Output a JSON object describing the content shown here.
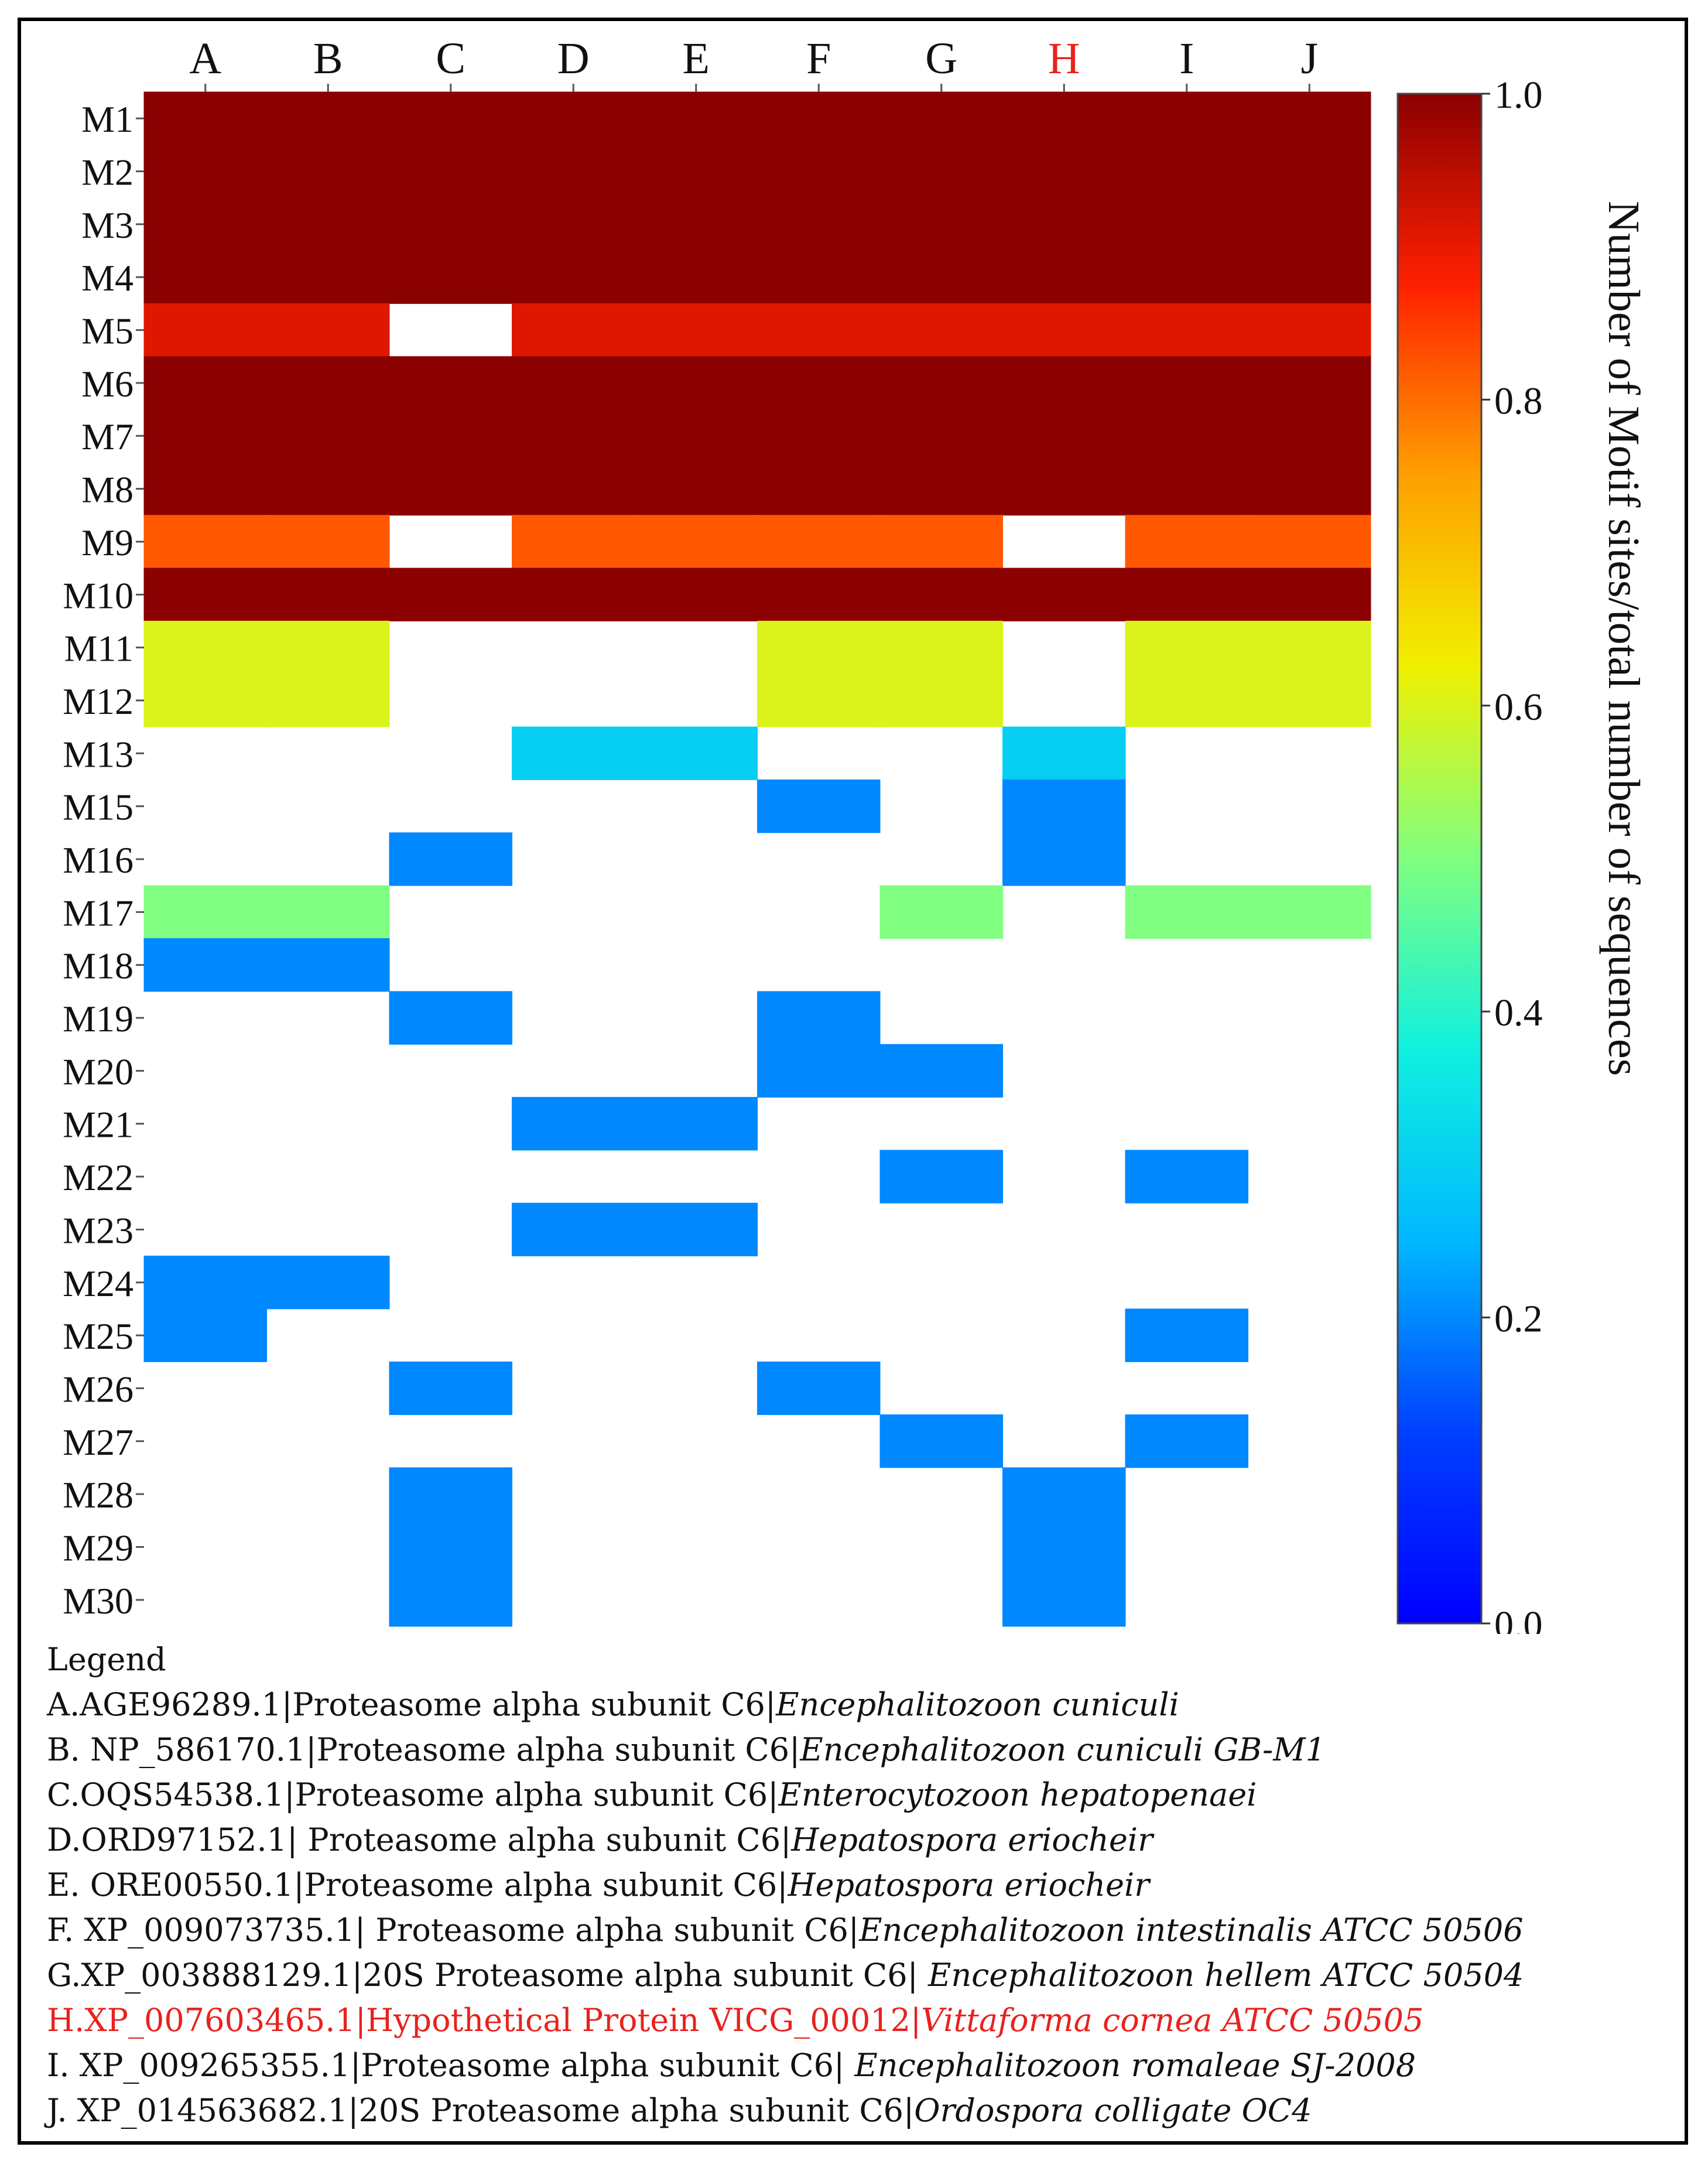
{
  "chart_data": {
    "type": "heatmap",
    "columns": [
      "A",
      "B",
      "C",
      "D",
      "E",
      "F",
      "G",
      "H",
      "I",
      "J"
    ],
    "highlighted_column": "H",
    "rows": [
      "M1",
      "M2",
      "M3",
      "M4",
      "M5",
      "M6",
      "M7",
      "M8",
      "M9",
      "M10",
      "M11",
      "M12",
      "M13",
      "M15",
      "M16",
      "M17",
      "M18",
      "M19",
      "M20",
      "M21",
      "M22",
      "M23",
      "M24",
      "M25",
      "M26",
      "M27",
      "M28",
      "M29",
      "M30"
    ],
    "values": [
      [
        1,
        1,
        1,
        1,
        1,
        1,
        1,
        1,
        1,
        1
      ],
      [
        1,
        1,
        1,
        1,
        1,
        1,
        1,
        1,
        1,
        1
      ],
      [
        1,
        1,
        1,
        1,
        1,
        1,
        1,
        1,
        1,
        1
      ],
      [
        1,
        1,
        1,
        1,
        1,
        1,
        1,
        1,
        1,
        1
      ],
      [
        0.91,
        0.91,
        null,
        0.91,
        0.91,
        0.91,
        0.91,
        0.91,
        0.91,
        0.91
      ],
      [
        1,
        1,
        1,
        1,
        1,
        1,
        1,
        1,
        1,
        1
      ],
      [
        1,
        1,
        1,
        1,
        1,
        1,
        1,
        1,
        1,
        1
      ],
      [
        1,
        1,
        1,
        1,
        1,
        1,
        1,
        1,
        1,
        1
      ],
      [
        0.82,
        0.82,
        null,
        0.82,
        0.82,
        0.82,
        0.82,
        null,
        0.82,
        0.82
      ],
      [
        1,
        1,
        1,
        1,
        1,
        1,
        1,
        1,
        1,
        1
      ],
      [
        0.6,
        0.6,
        null,
        null,
        null,
        0.6,
        0.6,
        null,
        0.6,
        0.6
      ],
      [
        0.6,
        0.6,
        null,
        null,
        null,
        0.6,
        0.6,
        null,
        0.6,
        0.6
      ],
      [
        null,
        null,
        null,
        0.3,
        0.3,
        null,
        null,
        0.3,
        null,
        null
      ],
      [
        null,
        null,
        null,
        null,
        null,
        0.2,
        null,
        0.2,
        null,
        null
      ],
      [
        null,
        null,
        0.2,
        null,
        null,
        null,
        null,
        0.2,
        null,
        null
      ],
      [
        0.5,
        0.5,
        null,
        null,
        null,
        null,
        0.5,
        null,
        0.5,
        0.5
      ],
      [
        0.2,
        0.2,
        null,
        null,
        null,
        null,
        null,
        null,
        null,
        null
      ],
      [
        null,
        null,
        0.2,
        null,
        null,
        0.2,
        null,
        null,
        null,
        null
      ],
      [
        null,
        null,
        null,
        null,
        null,
        0.2,
        0.2,
        null,
        null,
        null
      ],
      [
        null,
        null,
        null,
        0.2,
        0.2,
        null,
        null,
        null,
        null,
        null
      ],
      [
        null,
        null,
        null,
        null,
        null,
        null,
        0.2,
        null,
        0.2,
        null
      ],
      [
        null,
        null,
        null,
        0.2,
        0.2,
        null,
        null,
        null,
        null,
        null
      ],
      [
        0.2,
        0.2,
        null,
        null,
        null,
        null,
        null,
        null,
        null,
        null
      ],
      [
        0.2,
        null,
        null,
        null,
        null,
        null,
        null,
        null,
        0.2,
        null
      ],
      [
        null,
        null,
        0.2,
        null,
        null,
        0.2,
        null,
        null,
        null,
        null
      ],
      [
        null,
        null,
        null,
        null,
        null,
        null,
        0.2,
        null,
        0.2,
        null
      ],
      [
        null,
        null,
        0.2,
        null,
        null,
        null,
        null,
        0.2,
        null,
        null
      ],
      [
        null,
        null,
        0.2,
        null,
        null,
        null,
        null,
        0.2,
        null,
        null
      ],
      [
        null,
        null,
        0.2,
        null,
        null,
        null,
        null,
        0.2,
        null,
        null
      ]
    ],
    "colorbar": {
      "range": [
        0.0,
        1.0
      ],
      "ticks": [
        "1.0",
        "0.8",
        "0.6",
        "0.4",
        "0.2",
        "0.0"
      ],
      "label": "Number of Motif sites/total number of sequences"
    }
  },
  "colors": {
    "highlight": "#e8221e",
    "text": "#111111"
  },
  "legend": {
    "title": "Legend",
    "entries": [
      {
        "prefix": "A.AGE96289.1",
        "protein": "Proteasome alpha subunit C6",
        "species": "Encephalitozoon cuniculi",
        "highlight": false
      },
      {
        "prefix": "B. NP_586170.1",
        "protein": "Proteasome alpha subunit C6",
        "species": "Encephalitozoon cuniculi GB-M1",
        "highlight": false
      },
      {
        "prefix": "C.OQS54538.1",
        "protein": "Proteasome alpha subunit C6",
        "species": "Enterocytozoon hepatopenaei",
        "highlight": false
      },
      {
        "prefix": "D.ORD97152.1",
        "protein": " Proteasome alpha subunit C6",
        "species": "Hepatospora eriocheir",
        "highlight": false
      },
      {
        "prefix": "E. ORE00550.1",
        "protein": "Proteasome alpha subunit C6",
        "species": "Hepatospora eriocheir",
        "highlight": false
      },
      {
        "prefix": "F. XP_009073735.1",
        "protein": " Proteasome alpha subunit C6",
        "species": "Encephalitozoon intestinalis ATCC 50506",
        "highlight": false
      },
      {
        "prefix": "G.XP_003888129.1",
        "protein": "20S Proteasome alpha subunit C6",
        "species": " Encephalitozoon hellem ATCC 50504",
        "highlight": false
      },
      {
        "prefix": "H.XP_007603465.1",
        "protein": "Hypothetical Protein VICG_00012",
        "species": "Vittaforma cornea ATCC 50505",
        "highlight": true
      },
      {
        "prefix": "I.  XP_009265355.1",
        "protein": "Proteasome alpha subunit C6",
        "species": " Encephalitozoon romaleae SJ-2008",
        "highlight": false
      },
      {
        "prefix": "J.  XP_014563682.1",
        "protein": "20S Proteasome alpha subunit C6",
        "species": "Ordospora colligate OC4",
        "highlight": false
      }
    ]
  }
}
